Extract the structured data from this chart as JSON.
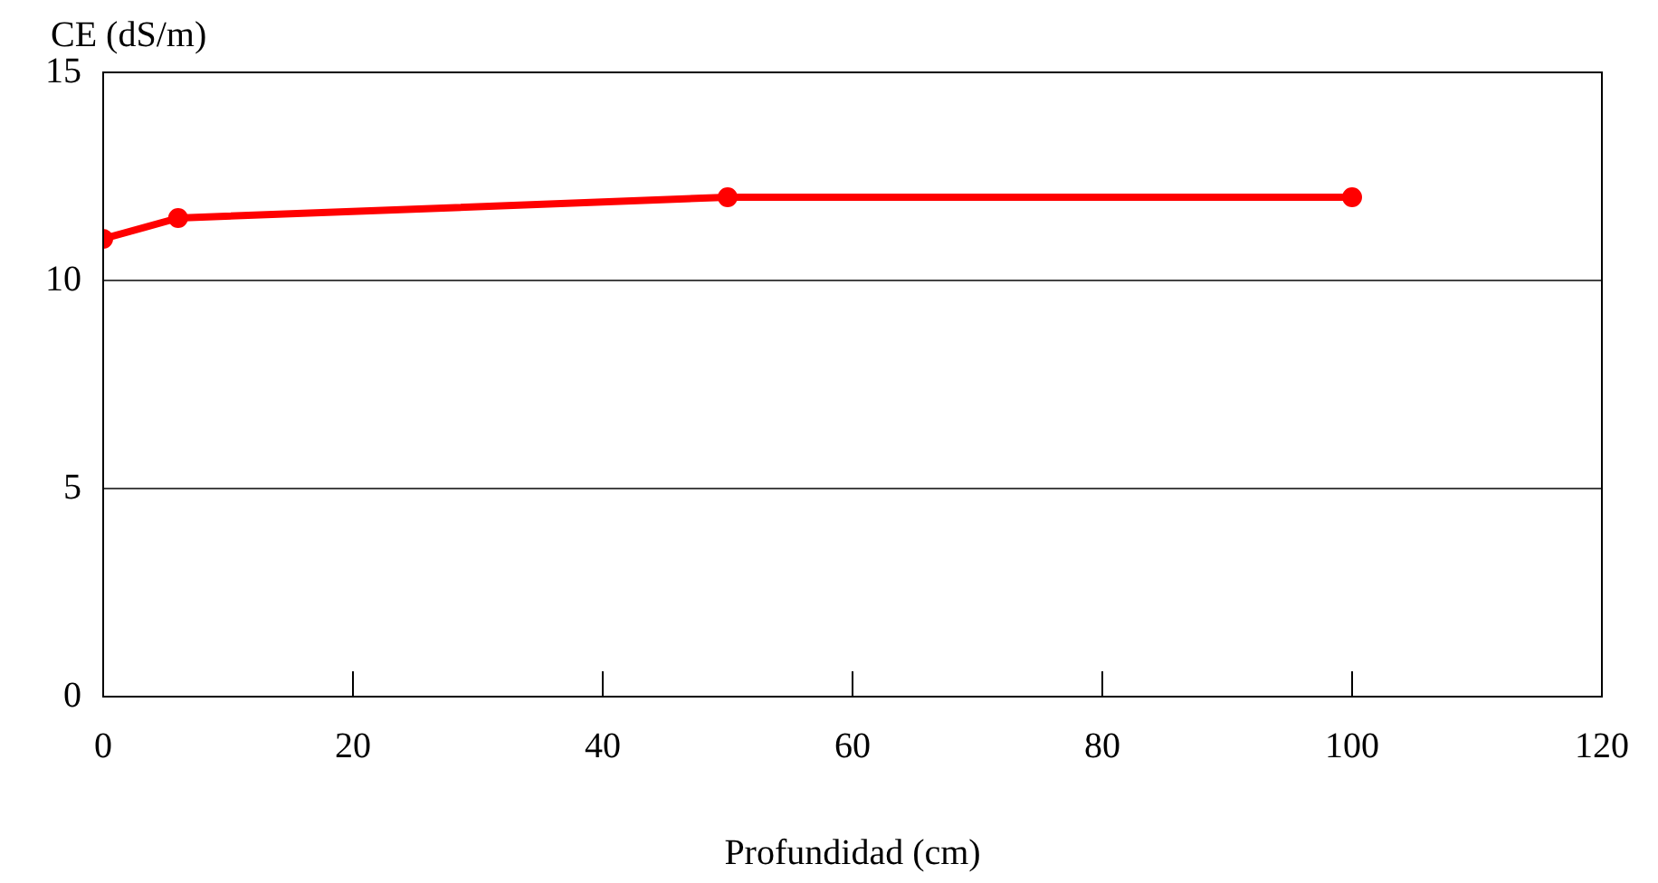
{
  "chart_data": {
    "type": "line",
    "xlabel": "Profundidad (cm)",
    "ylabel": "CE (dS/m)",
    "x": [
      0,
      6,
      50,
      100
    ],
    "series": [
      {
        "color": "#ff0000",
        "values": [
          11,
          11.5,
          12,
          12
        ]
      }
    ],
    "xlim": [
      0,
      120
    ],
    "xticks": [
      0,
      20,
      40,
      60,
      80,
      100,
      120
    ],
    "ylim": [
      0,
      15
    ],
    "yticks": [
      0,
      5,
      10,
      15
    ],
    "grid": "y",
    "legend": false,
    "marker": "circle",
    "line_style": "solid"
  }
}
